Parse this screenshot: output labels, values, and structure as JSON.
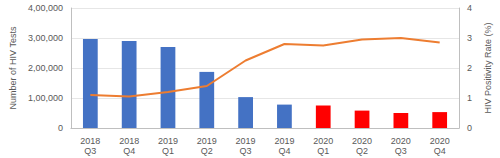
{
  "chart_data": {
    "type": "bar",
    "y_label": "Number of HIV Tests",
    "y2_label": "HIV Positivity Rate (%)",
    "categories": [
      "2018\nQ3",
      "2018\nQ4",
      "2019\nQ1",
      "2019\nQ2",
      "2019\nQ3",
      "2019\nQ4",
      "2020\nQ1",
      "2020\nQ2",
      "2020\nQ3",
      "2020\nQ4"
    ],
    "series": [
      {
        "type": "bar",
        "colors": [
          "#4472c4",
          "#4472c4",
          "#4472c4",
          "#4472c4",
          "#4472c4",
          "#4472c4",
          "#ff0000",
          "#ff0000",
          "#ff0000",
          "#ff0000"
        ],
        "values": [
          297000,
          290000,
          270000,
          187000,
          103000,
          78000,
          75000,
          58000,
          50000,
          53000
        ]
      },
      {
        "type": "line",
        "axis": "y2",
        "color": "#ed7d31",
        "values": [
          1.1,
          1.05,
          1.2,
          1.4,
          2.25,
          2.8,
          2.75,
          2.95,
          3.0,
          2.85
        ]
      }
    ],
    "ylim": [
      0,
      400000
    ],
    "yticks": [
      0,
      {
        "value": 100000,
        "label": "1,00,000"
      },
      {
        "value": 200000,
        "label": "2,00,000"
      },
      {
        "value": 300000,
        "label": "3,00,000"
      },
      {
        "value": 400000,
        "label": "4,00,000"
      }
    ],
    "y2lim": [
      0,
      4
    ],
    "y2ticks": [
      0,
      1,
      2,
      3,
      4
    ],
    "grid": true
  }
}
